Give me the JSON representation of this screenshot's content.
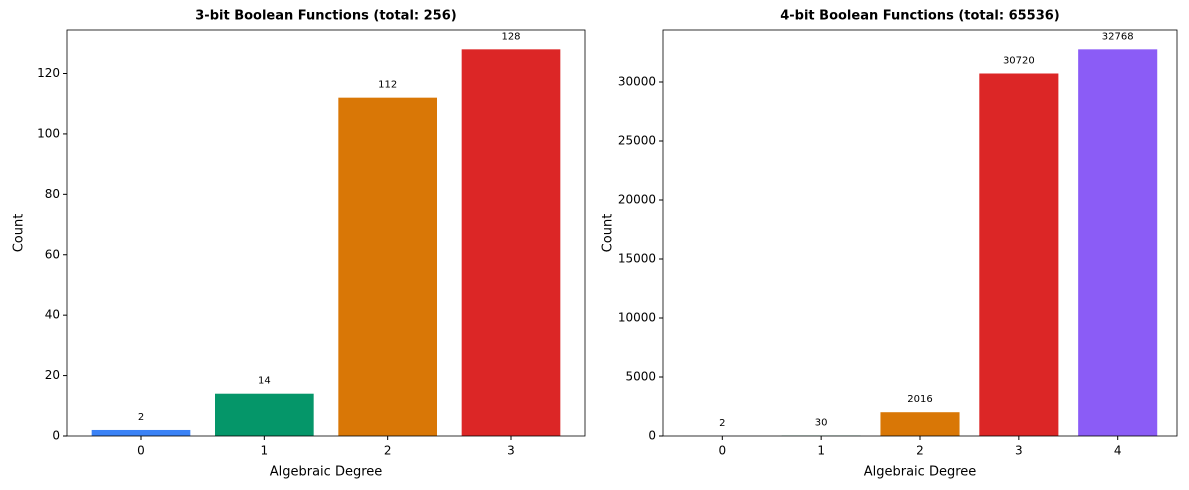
{
  "chart_data": [
    {
      "type": "bar",
      "title": "3-bit Boolean Functions (total: 256)",
      "xlabel": "Algebraic Degree",
      "ylabel": "Count",
      "categories": [
        "0",
        "1",
        "2",
        "3"
      ],
      "values": [
        2,
        14,
        112,
        128
      ],
      "colors": [
        "#3b82f6",
        "#059669",
        "#d97706",
        "#dc2626"
      ],
      "ylim": [
        0,
        134.4
      ],
      "yticks": [
        0,
        20,
        40,
        60,
        80,
        100,
        120
      ]
    },
    {
      "type": "bar",
      "title": "4-bit Boolean Functions (total: 65536)",
      "xlabel": "Algebraic Degree",
      "ylabel": "Count",
      "categories": [
        "0",
        "1",
        "2",
        "3",
        "4"
      ],
      "values": [
        2,
        30,
        2016,
        30720,
        32768
      ],
      "colors": [
        "#3b82f6",
        "#059669",
        "#d97706",
        "#dc2626",
        "#8b5cf6"
      ],
      "ylim": [
        0,
        34406.4
      ],
      "yticks": [
        0,
        5000,
        10000,
        15000,
        20000,
        25000,
        30000
      ]
    }
  ]
}
